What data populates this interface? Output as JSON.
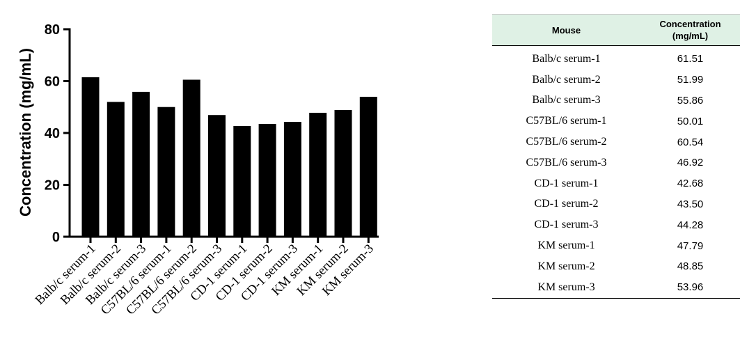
{
  "chart_data": {
    "type": "bar",
    "ylabel": "Concentration (mg/mL)",
    "ylim": [
      0,
      80
    ],
    "yticks": [
      0,
      20,
      40,
      60,
      80
    ],
    "categories": [
      "Balb/c serum-1",
      "Balb/c serum-2",
      "Balb/c serum-3",
      "C57BL/6 serum-1",
      "C57BL/6 serum-2",
      "C57BL/6 serum-3",
      "CD-1 serum-1",
      "CD-1 serum-2",
      "CD-1 serum-3",
      "KM serum-1",
      "KM serum-2",
      "KM serum-3"
    ],
    "values": [
      61.51,
      51.99,
      55.86,
      50.01,
      60.54,
      46.92,
      42.68,
      43.5,
      44.28,
      47.79,
      48.85,
      53.96
    ],
    "bar_color": "#000000",
    "grid": false
  },
  "table": {
    "header_bg": "#dff1e5",
    "columns": [
      "Mouse",
      "Concentration\n(mg/mL)"
    ],
    "rows": [
      [
        "Balb/c serum-1",
        "61.51"
      ],
      [
        "Balb/c serum-2",
        "51.99"
      ],
      [
        "Balb/c serum-3",
        "55.86"
      ],
      [
        "C57BL/6 serum-1",
        "50.01"
      ],
      [
        "C57BL/6 serum-2",
        "60.54"
      ],
      [
        "C57BL/6 serum-3",
        "46.92"
      ],
      [
        "CD-1 serum-1",
        "42.68"
      ],
      [
        "CD-1 serum-2",
        "43.50"
      ],
      [
        "CD-1 serum-3",
        "44.28"
      ],
      [
        "KM serum-1",
        "47.79"
      ],
      [
        "KM serum-2",
        "48.85"
      ],
      [
        "KM serum-3",
        "53.96"
      ]
    ]
  }
}
